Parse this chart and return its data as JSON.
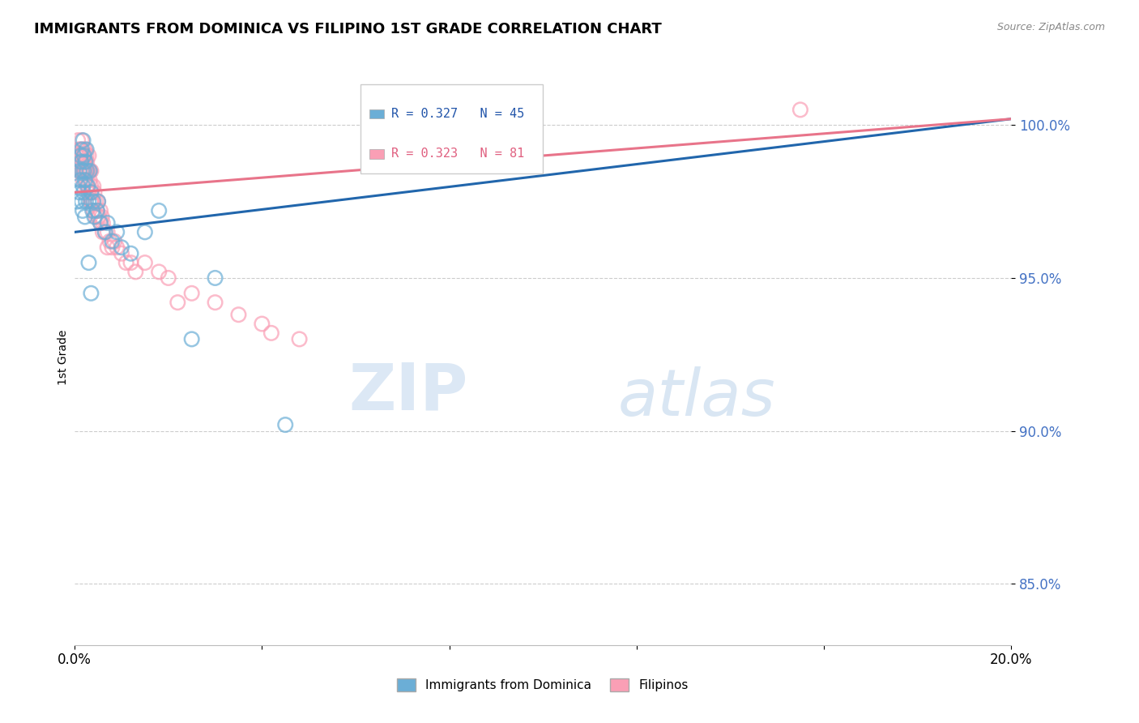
{
  "title": "IMMIGRANTS FROM DOMINICA VS FILIPINO 1ST GRADE CORRELATION CHART",
  "source_text": "Source: ZipAtlas.com",
  "ylabel": "1st Grade",
  "xlim": [
    0.0,
    20.0
  ],
  "ylim": [
    83.0,
    101.8
  ],
  "yticks": [
    85.0,
    90.0,
    95.0,
    100.0
  ],
  "ytick_labels": [
    "85.0%",
    "90.0%",
    "95.0%",
    "100.0%"
  ],
  "blue_R": 0.327,
  "blue_N": 45,
  "pink_R": 0.323,
  "pink_N": 81,
  "blue_color": "#6baed6",
  "pink_color": "#fa9fb5",
  "blue_line_color": "#2166ac",
  "pink_line_color": "#e8748a",
  "legend_label_blue": "Immigrants from Dominica",
  "legend_label_pink": "Filipinos",
  "blue_scatter_x": [
    0.05,
    0.08,
    0.1,
    0.1,
    0.12,
    0.13,
    0.14,
    0.15,
    0.15,
    0.16,
    0.17,
    0.18,
    0.18,
    0.19,
    0.2,
    0.2,
    0.22,
    0.22,
    0.23,
    0.24,
    0.25,
    0.26,
    0.28,
    0.3,
    0.32,
    0.35,
    0.38,
    0.4,
    0.42,
    0.48,
    0.55,
    0.65,
    0.8,
    1.0,
    1.2,
    1.5,
    0.5,
    0.7,
    0.9,
    1.8,
    0.3,
    0.35,
    2.5,
    3.0,
    4.5
  ],
  "blue_scatter_y": [
    97.5,
    98.0,
    97.8,
    98.5,
    98.2,
    99.0,
    98.8,
    99.2,
    97.5,
    98.5,
    97.2,
    99.5,
    98.0,
    97.8,
    99.0,
    98.5,
    98.2,
    97.0,
    98.8,
    97.5,
    99.2,
    98.5,
    98.0,
    97.5,
    98.5,
    97.8,
    97.2,
    97.5,
    97.0,
    97.2,
    96.8,
    96.5,
    96.2,
    96.0,
    95.8,
    96.5,
    97.5,
    96.8,
    96.5,
    97.2,
    95.5,
    94.5,
    93.0,
    95.0,
    90.2
  ],
  "pink_scatter_x": [
    0.05,
    0.07,
    0.08,
    0.09,
    0.1,
    0.1,
    0.11,
    0.12,
    0.13,
    0.14,
    0.15,
    0.15,
    0.16,
    0.17,
    0.18,
    0.18,
    0.19,
    0.2,
    0.2,
    0.21,
    0.22,
    0.22,
    0.23,
    0.24,
    0.25,
    0.25,
    0.26,
    0.28,
    0.28,
    0.3,
    0.3,
    0.32,
    0.33,
    0.35,
    0.35,
    0.36,
    0.38,
    0.4,
    0.4,
    0.42,
    0.45,
    0.48,
    0.5,
    0.52,
    0.55,
    0.58,
    0.6,
    0.65,
    0.7,
    0.75,
    0.8,
    0.85,
    0.9,
    1.0,
    1.1,
    1.2,
    1.3,
    1.5,
    1.8,
    2.0,
    2.5,
    3.0,
    3.5,
    4.0,
    0.35,
    0.4,
    0.45,
    0.2,
    0.25,
    0.3,
    0.5,
    0.6,
    0.7,
    2.2,
    4.2,
    4.8,
    0.15,
    0.35,
    0.55,
    15.5,
    0.25
  ],
  "pink_scatter_y": [
    99.0,
    99.5,
    98.8,
    99.2,
    98.5,
    99.0,
    98.8,
    99.2,
    98.5,
    99.0,
    98.8,
    99.5,
    98.5,
    99.0,
    98.2,
    99.2,
    98.8,
    98.5,
    99.0,
    98.8,
    98.5,
    99.2,
    98.8,
    98.5,
    99.0,
    98.2,
    98.8,
    98.5,
    98.0,
    98.5,
    99.0,
    98.2,
    98.5,
    98.0,
    98.5,
    97.8,
    97.5,
    98.0,
    97.5,
    97.8,
    97.5,
    97.2,
    97.5,
    97.0,
    97.2,
    97.0,
    96.8,
    96.5,
    96.5,
    96.2,
    96.0,
    96.2,
    96.0,
    95.8,
    95.5,
    95.5,
    95.2,
    95.5,
    95.2,
    95.0,
    94.5,
    94.2,
    93.8,
    93.5,
    97.5,
    97.2,
    97.0,
    98.5,
    98.0,
    97.8,
    97.0,
    96.5,
    96.0,
    94.2,
    93.2,
    93.0,
    99.0,
    97.5,
    96.8,
    100.5,
    98.5
  ],
  "blue_trendline_x": [
    0.0,
    20.0
  ],
  "blue_trendline_y": [
    96.5,
    100.2
  ],
  "pink_trendline_x": [
    0.0,
    20.0
  ],
  "pink_trendline_y": [
    97.8,
    100.2
  ]
}
